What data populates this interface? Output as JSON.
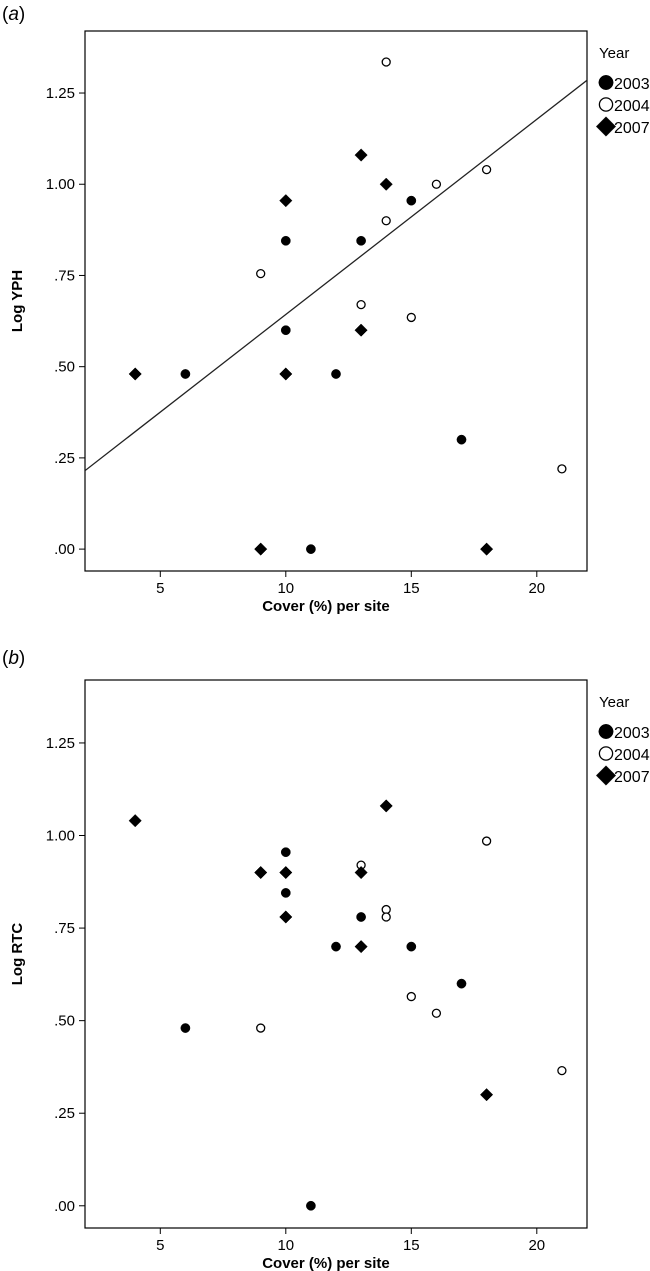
{
  "chart_data": [
    {
      "type": "scatter",
      "panel_label": "a",
      "title": "",
      "xlabel": "Cover (%) per site",
      "ylabel": "Log YPH",
      "xlim": [
        2,
        22
      ],
      "ylim": [
        -0.06,
        1.42
      ],
      "x_ticks": [
        5,
        10,
        15,
        20
      ],
      "y_ticks": [
        0.0,
        0.25,
        0.5,
        0.75,
        1.0,
        1.25
      ],
      "y_tick_labels": [
        ".00",
        ".25",
        ".50",
        ".75",
        "1.00",
        "1.25"
      ],
      "grid": false,
      "legend": {
        "title": "Year",
        "placement": "right",
        "entries": [
          {
            "label": "2003",
            "marker": "filled-circle"
          },
          {
            "label": "2004",
            "marker": "open-circle"
          },
          {
            "label": "2007",
            "marker": "filled-diamond"
          }
        ]
      },
      "fit_line": {
        "x": [
          2,
          22
        ],
        "y": [
          0.215,
          1.285
        ]
      },
      "series": [
        {
          "name": "2003",
          "marker": "filled-circle",
          "points": [
            [
              6,
              0.48
            ],
            [
              10,
              0.845
            ],
            [
              10,
              0.6
            ],
            [
              11,
              0.0
            ],
            [
              12,
              0.48
            ],
            [
              13,
              0.845
            ],
            [
              15,
              0.955
            ],
            [
              17,
              0.3
            ]
          ]
        },
        {
          "name": "2004",
          "marker": "open-circle",
          "points": [
            [
              9,
              0.755
            ],
            [
              13,
              0.67
            ],
            [
              14,
              1.335
            ],
            [
              14,
              0.9
            ],
            [
              15,
              0.635
            ],
            [
              16,
              1.0
            ],
            [
              18,
              1.04
            ],
            [
              21,
              0.22
            ]
          ]
        },
        {
          "name": "2007",
          "marker": "filled-diamond",
          "points": [
            [
              4,
              0.48
            ],
            [
              9,
              0.0
            ],
            [
              10,
              0.955
            ],
            [
              10,
              0.48
            ],
            [
              13,
              1.08
            ],
            [
              13,
              0.6
            ],
            [
              14,
              1.0
            ],
            [
              18,
              0.0
            ]
          ]
        }
      ]
    },
    {
      "type": "scatter",
      "panel_label": "b",
      "title": "",
      "xlabel": "Cover (%) per site",
      "ylabel": "Log RTC",
      "xlim": [
        2,
        22
      ],
      "ylim": [
        -0.06,
        1.42
      ],
      "x_ticks": [
        5,
        10,
        15,
        20
      ],
      "y_ticks": [
        0.0,
        0.25,
        0.5,
        0.75,
        1.0,
        1.25
      ],
      "y_tick_labels": [
        ".00",
        ".25",
        ".50",
        ".75",
        "1.00",
        "1.25"
      ],
      "grid": false,
      "legend": {
        "title": "Year",
        "placement": "right",
        "entries": [
          {
            "label": "2003",
            "marker": "filled-circle"
          },
          {
            "label": "2004",
            "marker": "open-circle"
          },
          {
            "label": "2007",
            "marker": "filled-diamond"
          }
        ]
      },
      "series": [
        {
          "name": "2003",
          "marker": "filled-circle",
          "points": [
            [
              6,
              0.48
            ],
            [
              10,
              0.955
            ],
            [
              10,
              0.845
            ],
            [
              11,
              0.0
            ],
            [
              12,
              0.7
            ],
            [
              13,
              0.78
            ],
            [
              15,
              0.7
            ],
            [
              17,
              0.6
            ]
          ]
        },
        {
          "name": "2004",
          "marker": "open-circle",
          "points": [
            [
              9,
              0.48
            ],
            [
              13,
              0.92
            ],
            [
              14,
              0.8
            ],
            [
              14,
              0.78
            ],
            [
              15,
              0.565
            ],
            [
              16,
              0.52
            ],
            [
              18,
              0.985
            ],
            [
              21,
              0.365
            ]
          ]
        },
        {
          "name": "2007",
          "marker": "filled-diamond",
          "points": [
            [
              4,
              1.04
            ],
            [
              9,
              0.9
            ],
            [
              10,
              0.9
            ],
            [
              10,
              0.78
            ],
            [
              13,
              0.9
            ],
            [
              13,
              0.7
            ],
            [
              14,
              1.08
            ],
            [
              18,
              0.3
            ]
          ]
        }
      ]
    }
  ]
}
